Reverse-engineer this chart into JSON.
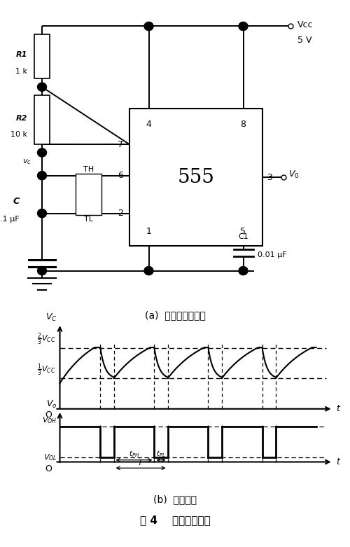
{
  "fig_width": 5.0,
  "fig_height": 7.81,
  "dpi": 100,
  "bg_color": "#ffffff",
  "caption_a": "(a)  多谐振荡器电路",
  "caption_b": "(b)  工作波形",
  "figure_caption": "图 4    电容测试原理"
}
